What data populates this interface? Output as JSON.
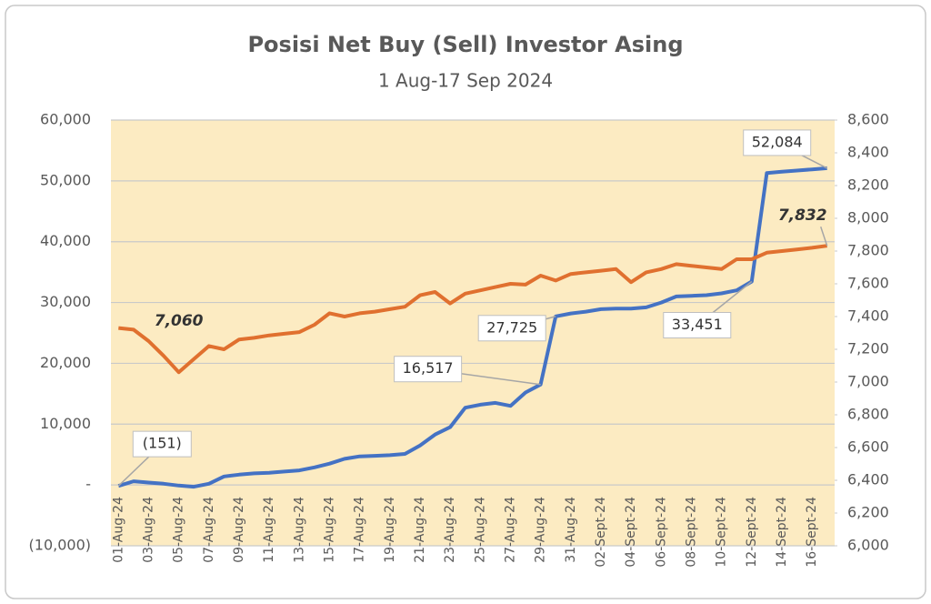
{
  "chart_data": {
    "type": "line",
    "title": "Posisi Net Buy (Sell) Investor Asing",
    "subtitle": "1 Aug-17 Sep 2024",
    "categories": [
      "01-Aug-24",
      null,
      "03-Aug-24",
      null,
      "05-Aug-24",
      null,
      "07-Aug-24",
      null,
      "09-Aug-24",
      null,
      "11-Aug-24",
      null,
      "13-Aug-24",
      null,
      "15-Aug-24",
      null,
      "17-Aug-24",
      null,
      "19-Aug-24",
      null,
      "21-Aug-24",
      null,
      "23-Aug-24",
      null,
      "25-Aug-24",
      null,
      "27-Aug-24",
      null,
      "29-Aug-24",
      null,
      "31-Aug-24",
      null,
      "02-Sept-24",
      null,
      "04-Sept-24",
      null,
      "06-Sept-24",
      null,
      "08-Sept-24",
      null,
      "10-Sept-24",
      null,
      "12-Sept-24",
      null,
      "14-Sept-24",
      null,
      "16-Sept-24",
      null
    ],
    "series": [
      {
        "color": "#4472c4",
        "axis": "y",
        "values": [
          -151,
          600,
          400,
          200,
          -100,
          -300,
          200,
          1400,
          1700,
          1900,
          2000,
          2200,
          2400,
          2900,
          3500,
          4300,
          4700,
          4800,
          4900,
          5100,
          6500,
          8300,
          9500,
          12700,
          13200,
          13500,
          13000,
          15200,
          16517,
          27725,
          28200,
          28500,
          28900,
          29000,
          29000,
          29200,
          30000,
          31000,
          31100,
          31200,
          31500,
          32000,
          33451,
          51300,
          51500,
          51700,
          51900,
          52084
        ],
        "value_labels": [
          "(151)",
          null,
          null,
          null,
          null,
          null,
          null,
          null,
          null,
          null,
          null,
          null,
          null,
          null,
          null,
          null,
          null,
          null,
          null,
          null,
          null,
          null,
          null,
          null,
          null,
          null,
          null,
          null,
          "16,517",
          "27,725",
          null,
          null,
          null,
          null,
          null,
          null,
          null,
          null,
          null,
          null,
          null,
          null,
          "33,451",
          null,
          null,
          null,
          null,
          "52,084"
        ]
      },
      {
        "color": "#e0702f",
        "axis": "y2",
        "values": [
          7330,
          7320,
          7250,
          7160,
          7060,
          7140,
          7220,
          7200,
          7260,
          7270,
          7285,
          7295,
          7305,
          7350,
          7420,
          7400,
          7420,
          7430,
          7445,
          7460,
          7530,
          7550,
          7480,
          7540,
          7560,
          7580,
          7600,
          7595,
          7650,
          7620,
          7660,
          7670,
          7680,
          7690,
          7610,
          7670,
          7690,
          7720,
          7710,
          7700,
          7690,
          7750,
          7750,
          7790,
          7800,
          7810,
          7820,
          7832
        ],
        "value_labels": [
          null,
          null,
          null,
          null,
          "7,060",
          null,
          null,
          null,
          null,
          null,
          null,
          null,
          null,
          null,
          null,
          null,
          null,
          null,
          null,
          null,
          null,
          null,
          null,
          null,
          null,
          null,
          null,
          null,
          null,
          null,
          null,
          null,
          null,
          null,
          null,
          null,
          null,
          null,
          null,
          null,
          null,
          null,
          null,
          null,
          null,
          null,
          null,
          "7,832"
        ]
      }
    ],
    "ylim": [
      -10000,
      60000
    ],
    "yticks": [
      {
        "value": -10000,
        "label": "(10,000)"
      },
      {
        "value": 0,
        "label": "-"
      },
      {
        "value": 10000,
        "label": "10,000"
      },
      {
        "value": 20000,
        "label": "20,000"
      },
      {
        "value": 30000,
        "label": "30,000"
      },
      {
        "value": 40000,
        "label": "40,000"
      },
      {
        "value": 50000,
        "label": "50,000"
      },
      {
        "value": 60000,
        "label": "60,000"
      }
    ],
    "y2lim": [
      6000,
      8600
    ],
    "y2ticks": [
      {
        "value": 6000,
        "label": "6,000"
      },
      {
        "value": 6200,
        "label": "6,200"
      },
      {
        "value": 6400,
        "label": "6,400"
      },
      {
        "value": 6600,
        "label": "6,600"
      },
      {
        "value": 6800,
        "label": "6,800"
      },
      {
        "value": 7000,
        "label": "7,000"
      },
      {
        "value": 7200,
        "label": "7,200"
      },
      {
        "value": 7400,
        "label": "7,400"
      },
      {
        "value": 7600,
        "label": "7,600"
      },
      {
        "value": 7800,
        "label": "7,800"
      },
      {
        "value": 8000,
        "label": "8,000"
      },
      {
        "value": 8200,
        "label": "8,200"
      },
      {
        "value": 8400,
        "label": "8,400"
      },
      {
        "value": 8600,
        "label": "8,600"
      }
    ],
    "grid": true,
    "plot_background": "#fcebc2"
  }
}
